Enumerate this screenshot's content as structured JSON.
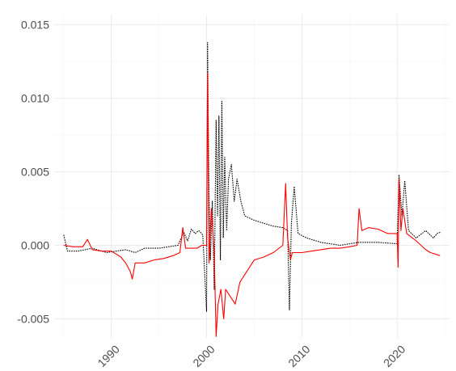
{
  "chart_data": {
    "type": "line",
    "title": "",
    "xlabel": "",
    "ylabel": "",
    "xlim": [
      1984.0,
      2025.5
    ],
    "ylim": [
      -0.0063,
      0.0157
    ],
    "x_ticks": [
      {
        "value": 1990,
        "label": "1990"
      },
      {
        "value": 2000,
        "label": "2000"
      },
      {
        "value": 2010,
        "label": "2010"
      },
      {
        "value": 2020,
        "label": "2020"
      }
    ],
    "y_ticks": [
      {
        "value": -0.005,
        "label": "-0.005"
      },
      {
        "value": 0.0,
        "label": "0.000"
      },
      {
        "value": 0.005,
        "label": "0.005"
      },
      {
        "value": 0.01,
        "label": "0.010"
      },
      {
        "value": 0.015,
        "label": "0.015"
      }
    ],
    "grid": true,
    "legend": "none",
    "series": [
      {
        "color": "#000000",
        "dash": "dotted",
        "points": [
          [
            1985.0,
            0.0007
          ],
          [
            1985.4,
            -0.0004
          ],
          [
            1986.5,
            -0.0004
          ],
          [
            1988.0,
            -0.0002
          ],
          [
            1989.5,
            -0.0005
          ],
          [
            1990.5,
            -0.0004
          ],
          [
            1991.5,
            -0.0003
          ],
          [
            1992.5,
            -0.0005
          ],
          [
            1993.5,
            -0.0002
          ],
          [
            1995.0,
            -0.0002
          ],
          [
            1996.0,
            -0.0001
          ],
          [
            1997.0,
            0.0
          ],
          [
            1997.6,
            0.0009
          ],
          [
            1998.0,
            0.0003
          ],
          [
            1998.4,
            0.0011
          ],
          [
            1998.8,
            0.0008
          ],
          [
            1999.2,
            0.001
          ],
          [
            1999.6,
            0.0007
          ],
          [
            2000.0,
            -0.0045
          ],
          [
            2000.1,
            0.0138
          ],
          [
            2000.25,
            0.0035
          ],
          [
            2000.4,
            -0.001
          ],
          [
            2000.6,
            0.003
          ],
          [
            2000.8,
            -0.003
          ],
          [
            2001.0,
            0.0085
          ],
          [
            2001.15,
            0.002
          ],
          [
            2001.3,
            0.0088
          ],
          [
            2001.45,
            -0.001
          ],
          [
            2001.6,
            0.0098
          ],
          [
            2001.75,
            0.0005
          ],
          [
            2001.9,
            0.006
          ],
          [
            2002.1,
            0.001
          ],
          [
            2002.3,
            0.0045
          ],
          [
            2002.6,
            0.0055
          ],
          [
            2002.9,
            0.003
          ],
          [
            2003.2,
            0.0045
          ],
          [
            2003.6,
            0.003
          ],
          [
            2004.0,
            0.002
          ],
          [
            2005.0,
            0.0017
          ],
          [
            2006.0,
            0.0015
          ],
          [
            2007.0,
            0.0013
          ],
          [
            2008.0,
            0.0012
          ],
          [
            2008.5,
            0.001
          ],
          [
            2008.7,
            -0.0044
          ],
          [
            2008.9,
            0.0015
          ],
          [
            2009.2,
            0.004
          ],
          [
            2009.6,
            0.0008
          ],
          [
            2010.5,
            0.0005
          ],
          [
            2012.0,
            0.0002
          ],
          [
            2014.0,
            0.0
          ],
          [
            2016.0,
            0.0002
          ],
          [
            2018.0,
            0.0002
          ],
          [
            2020.0,
            0.0001
          ],
          [
            2020.2,
            0.0048
          ],
          [
            2020.5,
            0.002
          ],
          [
            2020.8,
            0.0044
          ],
          [
            2021.2,
            0.001
          ],
          [
            2022.0,
            0.0005
          ],
          [
            2023.0,
            0.001
          ],
          [
            2023.8,
            0.0005
          ],
          [
            2024.2,
            0.0008
          ],
          [
            2024.6,
            0.0009
          ]
        ]
      },
      {
        "color": "#ff0000",
        "dash": "solid",
        "points": [
          [
            1985.0,
            0.0
          ],
          [
            1986.0,
            -0.0001
          ],
          [
            1987.0,
            -0.0001
          ],
          [
            1987.5,
            0.0004
          ],
          [
            1988.0,
            -0.0003
          ],
          [
            1989.0,
            -0.0004
          ],
          [
            1990.0,
            -0.0004
          ],
          [
            1991.0,
            -0.0008
          ],
          [
            1991.5,
            -0.0012
          ],
          [
            1992.0,
            -0.0018
          ],
          [
            1992.2,
            -0.0023
          ],
          [
            1992.5,
            -0.0012
          ],
          [
            1993.5,
            -0.0012
          ],
          [
            1994.5,
            -0.001
          ],
          [
            1995.5,
            -0.0009
          ],
          [
            1996.5,
            -0.0007
          ],
          [
            1997.2,
            -0.0005
          ],
          [
            1997.5,
            0.0012
          ],
          [
            1997.8,
            -0.0002
          ],
          [
            1998.5,
            -0.0002
          ],
          [
            1999.0,
            -0.0002
          ],
          [
            1999.5,
            0.0
          ],
          [
            2000.0,
            0.0
          ],
          [
            2000.1,
            0.0117
          ],
          [
            2000.25,
            -0.0012
          ],
          [
            2000.5,
            0.0025
          ],
          [
            2000.8,
            -0.0005
          ],
          [
            2001.0,
            -0.0062
          ],
          [
            2001.2,
            -0.004
          ],
          [
            2001.5,
            -0.003
          ],
          [
            2001.8,
            -0.005
          ],
          [
            2002.0,
            -0.003
          ],
          [
            2002.5,
            -0.0035
          ],
          [
            2003.0,
            -0.004
          ],
          [
            2003.5,
            -0.0025
          ],
          [
            2004.0,
            -0.002
          ],
          [
            2004.5,
            -0.0015
          ],
          [
            2005.0,
            -0.001
          ],
          [
            2006.0,
            -0.0008
          ],
          [
            2007.0,
            -0.0005
          ],
          [
            2008.0,
            0.0
          ],
          [
            2008.3,
            0.0042
          ],
          [
            2008.5,
            0.0005
          ],
          [
            2008.8,
            -0.001
          ],
          [
            2009.0,
            -0.0005
          ],
          [
            2010.0,
            -0.0005
          ],
          [
            2011.0,
            -0.0004
          ],
          [
            2012.0,
            -0.0003
          ],
          [
            2013.0,
            -0.0002
          ],
          [
            2014.0,
            -0.0002
          ],
          [
            2015.0,
            -0.0001
          ],
          [
            2015.8,
            0.0
          ],
          [
            2016.0,
            0.0025
          ],
          [
            2016.3,
            0.001
          ],
          [
            2017.0,
            0.0012
          ],
          [
            2018.0,
            0.0011
          ],
          [
            2019.0,
            0.0008
          ],
          [
            2020.0,
            0.0008
          ],
          [
            2020.1,
            -0.0015
          ],
          [
            2020.2,
            0.0045
          ],
          [
            2020.4,
            0.001
          ],
          [
            2020.6,
            0.0025
          ],
          [
            2021.0,
            0.0008
          ],
          [
            2022.0,
            0.0003
          ],
          [
            2023.0,
            -0.0003
          ],
          [
            2023.5,
            -0.0005
          ],
          [
            2024.0,
            -0.0006
          ],
          [
            2024.5,
            -0.0007
          ]
        ]
      }
    ]
  }
}
